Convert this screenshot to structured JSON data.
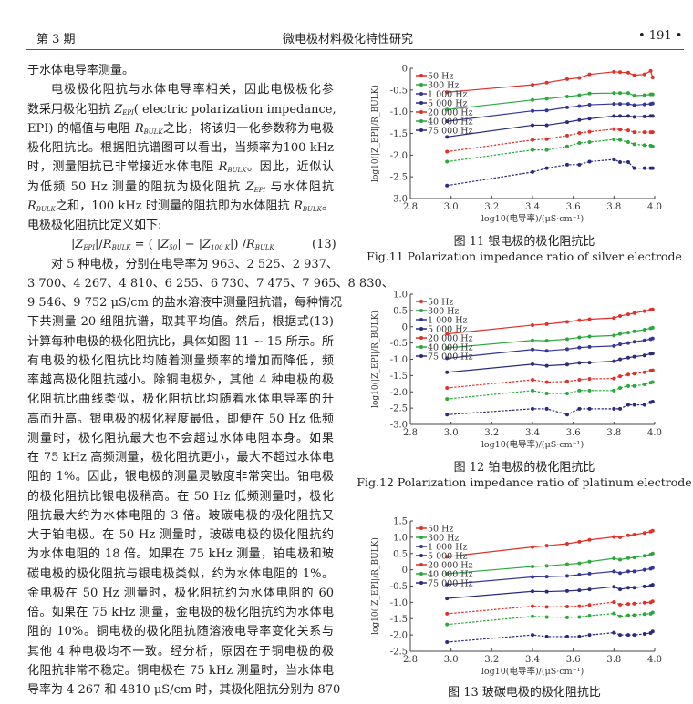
{
  "header": {
    "issue": "第 3 期",
    "title": "微电极材料极化特性研究",
    "page": "• 191 •"
  },
  "body": {
    "lines": [
      {
        "style": "last",
        "segs": [
          "于水体电导率测量。"
        ]
      },
      {
        "style": "ind",
        "segs": [
          "电极极化阻抗与水体电导率相关，因此电极极化参"
        ]
      },
      {
        "style": "",
        "segs": [
          "数采用极化阻抗 ",
          {
            "v": "Z",
            "sub": "EPI"
          },
          "( electric polarization impedance,"
        ]
      },
      {
        "style": "",
        "segs": [
          "EPI) 的幅值与电阻 ",
          {
            "v": "R",
            "sub": "BULK"
          },
          "之比，将该归一化参数称为电极"
        ]
      },
      {
        "style": "",
        "segs": [
          "极化阻抗比。根据阻抗谱图可以看出，当频率为100 kHz"
        ]
      },
      {
        "style": "",
        "segs": [
          "时，测量阻抗已非常接近水体电阻 ",
          {
            "v": "R",
            "sub": "BULK"
          },
          "。因此，近似认"
        ]
      },
      {
        "style": "",
        "segs": [
          "为低频 50 Hz 测量的阻抗为极化阻抗 ",
          {
            "v": "Z",
            "sub": "EPI"
          },
          " 与水体阻抗"
        ]
      },
      {
        "style": "",
        "segs": [
          {
            "v": "R",
            "sub": "BULK"
          },
          "之和，100 kHz 时测量的阻抗即为水体阻抗 ",
          {
            "v": "R",
            "sub": "BULK"
          },
          "。"
        ]
      },
      {
        "style": "last",
        "segs": [
          "电极极化阻抗比定义如下:"
        ]
      },
      {
        "style": "formula",
        "segs": [
          "|",
          {
            "v": "Z",
            "sub": "EPI"
          },
          "|/",
          {
            "v": "R",
            "sub": "BULK"
          },
          " = ( |",
          {
            "v": "Z",
            "sub": "50"
          },
          "| − |",
          {
            "v": "Z",
            "sub": "100 K"
          },
          "|) /",
          {
            "v": "R",
            "sub": "BULK"
          },
          "          (13)"
        ]
      },
      {
        "style": "ind",
        "segs": [
          "对 5 种电极，分别在电导率为 963、2 525、2 937、"
        ]
      },
      {
        "style": "",
        "segs": [
          "3 700、4 267、4 810、6 255、6 730、7 475、7 965、8 830、"
        ]
      },
      {
        "style": "",
        "segs": [
          "9 546、9 752 μS/cm 的盐水溶液中测量阻抗谱，每种情况"
        ]
      },
      {
        "style": "",
        "segs": [
          "下共测量 20 组阻抗谱，取其平均值。然后，根据式(13)"
        ]
      },
      {
        "style": "",
        "segs": [
          "计算每种电极的极化阻抗比，具体如图 11 ~ 15 所示。所"
        ]
      },
      {
        "style": "",
        "segs": [
          "有电极的极化阻抗比均随着测量频率的增加而降低，频"
        ]
      },
      {
        "style": "",
        "segs": [
          "率越高极化阻抗越小。除铜电极外，其他 4 种电极的极"
        ]
      },
      {
        "style": "",
        "segs": [
          "化阻抗比曲线类似，极化阻抗比均随着水体电导率的升"
        ]
      },
      {
        "style": "",
        "segs": [
          "高而升高。银电极的极化程度最低，即便在 50 Hz 低频"
        ]
      },
      {
        "style": "",
        "segs": [
          "测量时，极化阻抗最大也不会超过水体电阻本身。如果"
        ]
      },
      {
        "style": "",
        "segs": [
          "在 75 kHz 高频测量，极化阻抗更小，最大不超过水体电"
        ]
      },
      {
        "style": "",
        "segs": [
          "阻的 1%。因此，银电极的测量灵敏度非常突出。铂电极"
        ]
      },
      {
        "style": "",
        "segs": [
          "的极化阻抗比银电极稍高。在 50 Hz 低频测量时，极化"
        ]
      },
      {
        "style": "",
        "segs": [
          "阻抗最大约为水体电阻的 3 倍。玻碳电极的极化阻抗又"
        ]
      },
      {
        "style": "",
        "segs": [
          "大于铂电极。在 50 Hz 测量时，玻碳电极的极化阻抗约"
        ]
      },
      {
        "style": "",
        "segs": [
          "为水体电阻的 18 倍。如果在 75 kHz 测量，铂电极和玻"
        ]
      },
      {
        "style": "",
        "segs": [
          "碳电极的极化阻抗与银电极类似，约为水体电阻的 1%。"
        ]
      },
      {
        "style": "",
        "segs": [
          "金电极在 50 Hz 测量时，极化阻抗约为水体电阻的 60"
        ]
      },
      {
        "style": "",
        "segs": [
          "倍。如果在 75 kHz 测量，金电极的极化阻抗约为水体电"
        ]
      },
      {
        "style": "",
        "segs": [
          "阻的 10%。铜电极的极化阻抗随溶液电导率变化关系与"
        ]
      },
      {
        "style": "",
        "segs": [
          "其他 4 种电极均不一致。经分析，原因在于铜电极的极"
        ]
      },
      {
        "style": "",
        "segs": [
          "化阻抗非常不稳定。铜电极在 75 kHz 测量时，当水体电"
        ]
      },
      {
        "style": "",
        "segs": [
          "导率为 4 267 和 4810 μS/cm 时，其极化阻抗分别为 870"
        ]
      }
    ]
  },
  "figures": [
    {
      "caption_cn": "图 11   银电极的极化阻抗比",
      "caption_en": "Fig.11   Polarization impedance ratio of silver electrode"
    },
    {
      "caption_cn": "图 12   铂电极的极化阻抗比",
      "caption_en": "Fig.12   Polarization impedance ratio of platinum electrode"
    },
    {
      "caption_cn": "图 13   玻碳电极的极化阻抗比",
      "caption_en": ""
    }
  ],
  "series_style": {
    "colors": [
      "#e0302a",
      "#2aa83c",
      "#34349a",
      "#2a2a80",
      "#e0302a",
      "#2aa83c",
      "#2a2a80"
    ],
    "dashed": [
      false,
      false,
      false,
      false,
      true,
      true,
      true
    ]
  },
  "chart_data": [
    {
      "type": "line",
      "title": "",
      "xlabel": "log10(电导率)/(μS·cm⁻¹)",
      "ylabel": "log10(|Z_EPI|/R_BULK)",
      "xlim": [
        2.8,
        4.0
      ],
      "ylim": [
        -3.0,
        0
      ],
      "xticks": [
        "2.8",
        "3.0",
        "3.2",
        "3.4",
        "3.6",
        "3.8",
        "4.0"
      ],
      "yticks": [
        "0",
        "-0.5",
        "-1.0",
        "-1.5",
        "-2.0",
        "-2.5",
        "-3.0"
      ],
      "legend": "top-left",
      "grid": false,
      "x": [
        2.98,
        3.4,
        3.47,
        3.57,
        3.63,
        3.68,
        3.8,
        3.83,
        3.87,
        3.9,
        3.95,
        3.98,
        3.99
      ],
      "series": [
        {
          "name": "50 Hz",
          "values": [
            -0.55,
            -0.38,
            -0.33,
            -0.25,
            -0.22,
            -0.14,
            -0.08,
            -0.09,
            -0.1,
            -0.16,
            -0.14,
            -0.06,
            -0.21
          ]
        },
        {
          "name": "300 Hz",
          "values": [
            -0.95,
            -0.73,
            -0.7,
            -0.65,
            -0.62,
            -0.58,
            -0.57,
            -0.57,
            -0.57,
            -0.63,
            -0.62,
            -0.6,
            -0.6
          ]
        },
        {
          "name": "1 000 Hz",
          "values": [
            -1.22,
            -0.98,
            -0.97,
            -0.9,
            -0.87,
            -0.84,
            -0.82,
            -0.82,
            -0.82,
            -0.85,
            -0.83,
            -0.82,
            -0.81
          ]
        },
        {
          "name": "5 000 Hz",
          "values": [
            -1.58,
            -1.31,
            -1.31,
            -1.24,
            -1.19,
            -1.16,
            -1.1,
            -1.1,
            -1.1,
            -1.12,
            -1.11,
            -1.1,
            -1.1
          ]
        },
        {
          "name": "20 000 Hz",
          "values": [
            -1.92,
            -1.65,
            -1.63,
            -1.55,
            -1.49,
            -1.46,
            -1.4,
            -1.41,
            -1.43,
            -1.47,
            -1.47,
            -1.47,
            -1.47
          ]
        },
        {
          "name": "40 000 Hz",
          "values": [
            -2.15,
            -1.88,
            -1.88,
            -1.8,
            -1.72,
            -1.7,
            -1.64,
            -1.65,
            -1.7,
            -1.75,
            -1.77,
            -1.78,
            -1.8
          ]
        },
        {
          "name": "75 000 Hz",
          "values": [
            -2.7,
            -2.39,
            -2.3,
            -2.22,
            -2.22,
            -2.15,
            -2.1,
            -2.16,
            -2.16,
            -2.3,
            -2.3,
            -2.3,
            -2.3
          ]
        }
      ]
    },
    {
      "type": "line",
      "title": "",
      "xlabel": "log10(电导率)/(μS·cm⁻¹)",
      "ylabel": "log10(|Z_EPI|/R_BULK)",
      "xlim": [
        2.8,
        4.0
      ],
      "ylim": [
        -3.0,
        1.0
      ],
      "xticks": [
        "2.8",
        "3.0",
        "3.2",
        "3.4",
        "3.6",
        "3.8",
        "4.0"
      ],
      "yticks": [
        "1.0",
        "0.5",
        "0",
        "-0.5",
        "-1.0",
        "-1.5",
        "-2.0",
        "-2.5",
        "-3.0"
      ],
      "legend": "top-left",
      "grid": false,
      "x": [
        2.98,
        3.4,
        3.47,
        3.57,
        3.63,
        3.68,
        3.8,
        3.83,
        3.87,
        3.9,
        3.95,
        3.98,
        3.99
      ],
      "series": [
        {
          "name": "50 Hz",
          "values": [
            -0.22,
            0.05,
            0.08,
            0.15,
            0.2,
            0.23,
            0.27,
            0.33,
            0.38,
            0.42,
            0.48,
            0.52,
            0.53
          ]
        },
        {
          "name": "300 Hz",
          "values": [
            -0.65,
            -0.42,
            -0.43,
            -0.38,
            -0.33,
            -0.3,
            -0.27,
            -0.22,
            -0.18,
            -0.14,
            -0.09,
            -0.05,
            -0.03
          ]
        },
        {
          "name": "1 000 Hz",
          "values": [
            -0.97,
            -0.7,
            -0.74,
            -0.69,
            -0.64,
            -0.62,
            -0.59,
            -0.54,
            -0.5,
            -0.46,
            -0.42,
            -0.38,
            -0.36
          ]
        },
        {
          "name": "5 000 Hz",
          "values": [
            -1.4,
            -1.15,
            -1.2,
            -1.16,
            -1.11,
            -1.1,
            -1.06,
            -1.0,
            -0.95,
            -0.92,
            -0.88,
            -0.83,
            -0.82
          ]
        },
        {
          "name": "20 000 Hz",
          "values": [
            -1.88,
            -1.63,
            -1.7,
            -1.68,
            -1.63,
            -1.6,
            -1.59,
            -1.52,
            -1.47,
            -1.44,
            -1.4,
            -1.35,
            -1.34
          ]
        },
        {
          "name": "40 000 Hz",
          "values": [
            -2.22,
            -1.96,
            -2.05,
            -2.05,
            -1.96,
            -1.96,
            -1.96,
            -1.88,
            -1.82,
            -1.82,
            -1.77,
            -1.72,
            -1.7
          ]
        },
        {
          "name": "75 000 Hz",
          "values": [
            -2.7,
            -2.52,
            -2.52,
            -2.7,
            -2.52,
            -2.52,
            -2.52,
            -2.52,
            -2.4,
            -2.4,
            -2.4,
            -2.32,
            -2.3
          ]
        }
      ]
    },
    {
      "type": "line",
      "title": "",
      "xlabel": "log10(电导率)/(μS·cm⁻¹)",
      "ylabel": "log10(|Z_EPI|/R_BULK)",
      "xlim": [
        2.8,
        4.0
      ],
      "ylim": [
        -2.5,
        1.5
      ],
      "xticks": [
        "2.8",
        "3.0",
        "3.2",
        "3.4",
        "3.6",
        "3.8",
        "4.0"
      ],
      "yticks": [
        "1.5",
        "1.0",
        "0.5",
        "0",
        "-0.5",
        "-1.0",
        "-1.5",
        "-2.0",
        "-2.5"
      ],
      "legend": "top-left",
      "grid": false,
      "x": [
        2.98,
        3.4,
        3.47,
        3.57,
        3.63,
        3.68,
        3.8,
        3.83,
        3.87,
        3.9,
        3.95,
        3.98,
        3.99
      ],
      "series": [
        {
          "name": "50 Hz",
          "values": [
            0.4,
            0.7,
            0.74,
            0.8,
            0.86,
            0.92,
            1.01,
            1.0,
            1.06,
            1.08,
            1.13,
            1.17,
            1.2
          ]
        },
        {
          "name": "300 Hz",
          "values": [
            -0.12,
            0.1,
            0.12,
            0.17,
            0.2,
            0.25,
            0.35,
            0.31,
            0.36,
            0.38,
            0.43,
            0.47,
            0.5
          ]
        },
        {
          "name": "1 000 Hz",
          "values": [
            -0.45,
            -0.22,
            -0.21,
            -0.19,
            -0.15,
            -0.12,
            -0.05,
            -0.1,
            -0.05,
            -0.05,
            0.0,
            0.03,
            0.06
          ]
        },
        {
          "name": "5 000 Hz",
          "values": [
            -0.88,
            -0.66,
            -0.67,
            -0.65,
            -0.63,
            -0.6,
            -0.52,
            -0.6,
            -0.55,
            -0.55,
            -0.51,
            -0.49,
            -0.46
          ]
        },
        {
          "name": "20 000 Hz",
          "values": [
            -1.35,
            -1.12,
            -1.14,
            -1.13,
            -1.12,
            -1.08,
            -0.99,
            -1.07,
            -1.05,
            -1.04,
            -1.01,
            -1.0,
            -0.97
          ]
        },
        {
          "name": "40 000 Hz",
          "values": [
            -1.68,
            -1.43,
            -1.45,
            -1.46,
            -1.45,
            -1.41,
            -1.34,
            -1.43,
            -1.4,
            -1.39,
            -1.36,
            -1.35,
            -1.31
          ]
        },
        {
          "name": "75 000 Hz",
          "values": [
            -2.22,
            -2.0,
            -2.05,
            -2.05,
            -2.05,
            -2.0,
            -1.93,
            -2.0,
            -2.0,
            -2.0,
            -1.97,
            -1.94,
            -1.89
          ]
        }
      ]
    }
  ]
}
